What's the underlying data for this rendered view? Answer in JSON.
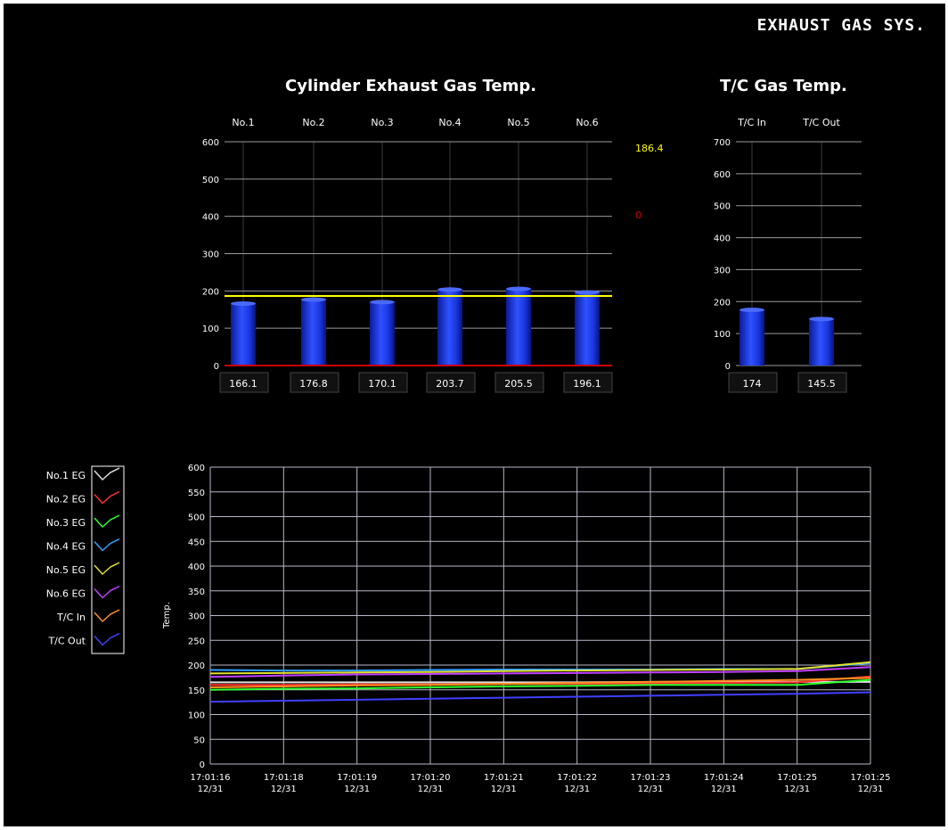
{
  "window": {
    "title": "EXHAUST GAS SYS."
  },
  "colors": {
    "background": "#000000",
    "bar": "#1f3cff",
    "average_line": "#ffff00",
    "zero_line": "#cc0000",
    "grid": "#ffffff"
  },
  "cylinder_panel": {
    "title": "Cylinder Exhaust Gas Temp.",
    "average_readout": "186.4",
    "alarm_readout": "0"
  },
  "tc_panel": {
    "title": "T/C Gas Temp."
  },
  "trend_panel": {
    "legend": [
      {
        "label": "No.1 EG",
        "color": "#e0e0e0"
      },
      {
        "label": "No.2 EG",
        "color": "#ff3030"
      },
      {
        "label": "No.3 EG",
        "color": "#30ff30"
      },
      {
        "label": "No.4 EG",
        "color": "#30a0ff"
      },
      {
        "label": "No.5 EG",
        "color": "#e0e030"
      },
      {
        "label": "No.6 EG",
        "color": "#c040ff"
      },
      {
        "label": "T/C In",
        "color": "#ff9020"
      },
      {
        "label": "T/C Out",
        "color": "#4040ff"
      }
    ]
  },
  "chart_data": [
    {
      "type": "bar",
      "title": "Cylinder Exhaust Gas Temp.",
      "categories": [
        "No.1",
        "No.2",
        "No.3",
        "No.4",
        "No.5",
        "No.6"
      ],
      "values": [
        166.1,
        176.8,
        170.1,
        203.7,
        205.5,
        196.1
      ],
      "value_labels": [
        "166.1",
        "176.8",
        "170.1",
        "203.7",
        "205.5",
        "196.1"
      ],
      "yticks": [
        0,
        100,
        200,
        300,
        400,
        500,
        600
      ],
      "ylim": [
        0,
        600
      ],
      "reference_lines": [
        {
          "value": 186.4,
          "color": "#ffff00"
        },
        {
          "value": 0,
          "color": "#cc0000"
        }
      ],
      "grid": true
    },
    {
      "type": "bar",
      "title": "T/C Gas Temp.",
      "categories": [
        "T/C In",
        "T/C Out"
      ],
      "values": [
        174,
        145.5
      ],
      "value_labels": [
        "174",
        "145.5"
      ],
      "yticks": [
        0,
        100,
        200,
        300,
        400,
        500,
        600,
        700
      ],
      "ylim": [
        0,
        700
      ],
      "grid": true
    },
    {
      "type": "line",
      "ylabel": "Temp.",
      "ylim": [
        0,
        600
      ],
      "yticks": [
        0,
        50,
        100,
        150,
        200,
        250,
        300,
        350,
        400,
        450,
        500,
        550,
        600
      ],
      "x_times": [
        "17:01:16",
        "17:01:18",
        "17:01:19",
        "17:01:20",
        "17:01:21",
        "17:01:22",
        "17:01:23",
        "17:01:24",
        "17:01:25",
        "17:01:25"
      ],
      "x_dates": [
        "12/31",
        "12/31",
        "12/31",
        "12/31",
        "12/31",
        "12/31",
        "12/31",
        "12/31",
        "12/31",
        "12/31"
      ],
      "legend_position": "left",
      "series": [
        {
          "name": "No.1 EG",
          "values": [
            165,
            165,
            165,
            165,
            165,
            165,
            166,
            166,
            166,
            166
          ]
        },
        {
          "name": "No.2 EG",
          "values": [
            160,
            160,
            161,
            161,
            162,
            162,
            163,
            164,
            165,
            177
          ]
        },
        {
          "name": "No.3 EG",
          "values": [
            150,
            152,
            153,
            155,
            157,
            158,
            160,
            160,
            160,
            170
          ]
        },
        {
          "name": "No.4 EG",
          "values": [
            190,
            189,
            189,
            190,
            191,
            191,
            191,
            192,
            192,
            204
          ]
        },
        {
          "name": "No.5 EG",
          "values": [
            183,
            184,
            185,
            186,
            188,
            189,
            190,
            191,
            192,
            206
          ]
        },
        {
          "name": "No.6 EG",
          "values": [
            176,
            179,
            181,
            182,
            183,
            184,
            185,
            186,
            188,
            196
          ]
        },
        {
          "name": "T/C In",
          "values": [
            155,
            157,
            159,
            160,
            162,
            164,
            166,
            168,
            170,
            174
          ]
        },
        {
          "name": "T/C Out",
          "values": [
            126,
            128,
            130,
            132,
            134,
            136,
            138,
            140,
            142,
            145
          ]
        }
      ],
      "grid": true
    }
  ]
}
